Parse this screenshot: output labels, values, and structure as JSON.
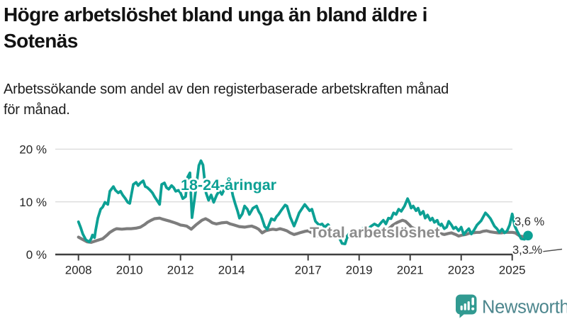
{
  "header": {
    "title_lines": [
      "Högre arbetslöshet bland unga än bland äldre i",
      "Sotenäs"
    ],
    "subtitle_lines": [
      "Arbetssökande som andel av den registerbaserade arbetskraften månad",
      "för månad."
    ]
  },
  "footer": {
    "brand": "Newsworthy",
    "brand_color": "#4c868d",
    "icon_color": "#319a91"
  },
  "chart_data": {
    "type": "line",
    "title": "Högre arbetslöshet bland unga än bland äldre i Sotenäs",
    "subtitle": "Arbetssökande som andel av den registerbaserade arbetskraften månad för månad.",
    "unit": "%",
    "grid": "horizontal",
    "legend_position": "inline-labels",
    "xlim": [
      2008,
      2025.8
    ],
    "ylim": [
      0,
      20
    ],
    "x_ticks": [
      2008,
      2010,
      2012,
      2014,
      2017,
      2019,
      2021,
      2023,
      2025
    ],
    "x_tick_labels": [
      "2008",
      "2010",
      "2012",
      "2014",
      "2017",
      "2019",
      "2021",
      "2023",
      "2025"
    ],
    "y_ticks": [
      0,
      10,
      20
    ],
    "y_tick_labels": [
      "0 %",
      "10 %",
      "20 %"
    ],
    "colors": {
      "youth": "#0ca094",
      "total": "#7d7d7d",
      "grid": "#dcdcdc",
      "axis": "#3f3f3f"
    },
    "series": [
      {
        "name": "Total arbetslöshet",
        "color": "#7d7d7d",
        "stroke_width": 4.2,
        "end_label": "3,3 %",
        "end_value": 3.3,
        "points": [
          [
            2008.0,
            3.3
          ],
          [
            2008.15,
            2.9
          ],
          [
            2008.34,
            2.4
          ],
          [
            2008.5,
            2.3
          ],
          [
            2008.76,
            2.7
          ],
          [
            2008.95,
            3.0
          ],
          [
            2009.1,
            3.6
          ],
          [
            2009.23,
            4.2
          ],
          [
            2009.4,
            4.7
          ],
          [
            2009.5,
            4.9
          ],
          [
            2009.7,
            4.8
          ],
          [
            2009.9,
            4.9
          ],
          [
            2010.06,
            4.9
          ],
          [
            2010.25,
            5.0
          ],
          [
            2010.43,
            5.2
          ],
          [
            2010.6,
            5.7
          ],
          [
            2010.7,
            6.1
          ],
          [
            2010.85,
            6.5
          ],
          [
            2010.98,
            6.8
          ],
          [
            2011.18,
            6.9
          ],
          [
            2011.3,
            6.7
          ],
          [
            2011.45,
            6.5
          ],
          [
            2011.6,
            6.3
          ],
          [
            2011.73,
            6.1
          ],
          [
            2011.9,
            5.8
          ],
          [
            2012.0,
            5.6
          ],
          [
            2012.12,
            5.5
          ],
          [
            2012.24,
            5.4
          ],
          [
            2012.42,
            4.8
          ],
          [
            2012.6,
            5.6
          ],
          [
            2012.84,
            6.5
          ],
          [
            2012.98,
            6.8
          ],
          [
            2013.1,
            6.5
          ],
          [
            2013.25,
            6.0
          ],
          [
            2013.4,
            5.8
          ],
          [
            2013.6,
            6.0
          ],
          [
            2013.81,
            6.1
          ],
          [
            2013.95,
            5.8
          ],
          [
            2014.1,
            5.6
          ],
          [
            2014.3,
            5.3
          ],
          [
            2014.51,
            5.2
          ],
          [
            2014.65,
            5.3
          ],
          [
            2014.79,
            5.4
          ],
          [
            2014.95,
            5.1
          ],
          [
            2015.06,
            4.8
          ],
          [
            2015.2,
            4.1
          ],
          [
            2015.34,
            4.5
          ],
          [
            2015.5,
            4.7
          ],
          [
            2015.62,
            4.8
          ],
          [
            2015.75,
            4.7
          ],
          [
            2015.9,
            4.9
          ],
          [
            2016.05,
            4.7
          ],
          [
            2016.17,
            4.5
          ],
          [
            2016.3,
            4.1
          ],
          [
            2016.45,
            3.8
          ],
          [
            2016.6,
            4.0
          ],
          [
            2016.73,
            4.2
          ],
          [
            2016.88,
            4.4
          ],
          [
            2017.0,
            4.5
          ],
          [
            2017.15,
            4.1
          ],
          [
            2017.29,
            3.4
          ],
          [
            2017.45,
            3.6
          ],
          [
            2017.6,
            3.7
          ],
          [
            2017.75,
            3.5
          ],
          [
            2017.9,
            3.3
          ],
          [
            2018.1,
            3.4
          ],
          [
            2018.3,
            3.2
          ],
          [
            2018.5,
            3.4
          ],
          [
            2018.7,
            3.3
          ],
          [
            2018.9,
            3.4
          ],
          [
            2019.1,
            3.5
          ],
          [
            2019.3,
            3.6
          ],
          [
            2019.5,
            3.7
          ],
          [
            2019.7,
            3.8
          ],
          [
            2019.9,
            4.0
          ],
          [
            2020.1,
            4.6
          ],
          [
            2020.3,
            5.5
          ],
          [
            2020.5,
            6.1
          ],
          [
            2020.7,
            6.5
          ],
          [
            2020.82,
            6.3
          ],
          [
            2020.95,
            5.7
          ],
          [
            2021.05,
            5.2
          ],
          [
            2021.17,
            4.9
          ],
          [
            2021.3,
            4.4
          ],
          [
            2021.45,
            4.1
          ],
          [
            2021.6,
            4.4
          ],
          [
            2021.72,
            4.5
          ],
          [
            2021.85,
            4.3
          ],
          [
            2022.0,
            4.2
          ],
          [
            2022.17,
            4.0
          ],
          [
            2022.34,
            3.8
          ],
          [
            2022.5,
            4.0
          ],
          [
            2022.62,
            4.1
          ],
          [
            2022.78,
            3.8
          ],
          [
            2022.9,
            3.5
          ],
          [
            2023.05,
            3.7
          ],
          [
            2023.18,
            3.8
          ],
          [
            2023.3,
            4.0
          ],
          [
            2023.45,
            4.1
          ],
          [
            2023.6,
            4.2
          ],
          [
            2023.73,
            4.2
          ],
          [
            2023.85,
            4.4
          ],
          [
            2024.0,
            4.5
          ],
          [
            2024.15,
            4.3
          ],
          [
            2024.29,
            4.2
          ],
          [
            2024.45,
            4.1
          ],
          [
            2024.57,
            4.1
          ],
          [
            2024.7,
            4.2
          ],
          [
            2024.84,
            4.2
          ],
          [
            2025.0,
            4.2
          ],
          [
            2025.12,
            4.1
          ],
          [
            2025.3,
            3.5
          ],
          [
            2025.43,
            3.4
          ],
          [
            2025.62,
            3.3
          ]
        ]
      },
      {
        "name": "18-24-åringar",
        "color": "#0ca094",
        "stroke_width": 3.8,
        "end_label": "3,6 %",
        "end_value": 3.6,
        "end_dot": true,
        "points": [
          [
            2008.0,
            6.2
          ],
          [
            2008.08,
            5.2
          ],
          [
            2008.17,
            3.9
          ],
          [
            2008.29,
            2.8
          ],
          [
            2008.42,
            2.4
          ],
          [
            2008.5,
            3.0
          ],
          [
            2008.55,
            3.7
          ],
          [
            2008.63,
            3.2
          ],
          [
            2008.67,
            4.5
          ],
          [
            2008.76,
            6.9
          ],
          [
            2008.87,
            8.6
          ],
          [
            2008.95,
            9.0
          ],
          [
            2009.04,
            9.9
          ],
          [
            2009.15,
            9.5
          ],
          [
            2009.23,
            12.0
          ],
          [
            2009.37,
            12.9
          ],
          [
            2009.45,
            12.2
          ],
          [
            2009.56,
            11.7
          ],
          [
            2009.65,
            12.0
          ],
          [
            2009.73,
            11.3
          ],
          [
            2009.84,
            10.6
          ],
          [
            2009.93,
            9.9
          ],
          [
            2010.01,
            9.7
          ],
          [
            2010.15,
            13.3
          ],
          [
            2010.26,
            13.7
          ],
          [
            2010.34,
            13.1
          ],
          [
            2010.43,
            13.6
          ],
          [
            2010.54,
            14.0
          ],
          [
            2010.62,
            12.9
          ],
          [
            2010.7,
            12.7
          ],
          [
            2010.81,
            12.2
          ],
          [
            2010.9,
            11.7
          ],
          [
            2010.98,
            11.0
          ],
          [
            2011.09,
            10.2
          ],
          [
            2011.18,
            9.5
          ],
          [
            2011.26,
            13.3
          ],
          [
            2011.37,
            13.6
          ],
          [
            2011.45,
            12.7
          ],
          [
            2011.54,
            12.4
          ],
          [
            2011.65,
            13.1
          ],
          [
            2011.73,
            12.7
          ],
          [
            2011.81,
            12.0
          ],
          [
            2011.92,
            12.2
          ],
          [
            2012.0,
            11.7
          ],
          [
            2012.09,
            10.6
          ],
          [
            2012.2,
            11.0
          ],
          [
            2012.28,
            14.7
          ],
          [
            2012.37,
            15.5
          ],
          [
            2012.45,
            7.0
          ],
          [
            2012.6,
            12.3
          ],
          [
            2012.72,
            16.9
          ],
          [
            2012.8,
            17.8
          ],
          [
            2012.88,
            17.0
          ],
          [
            2013.0,
            11.7
          ],
          [
            2013.1,
            10.3
          ],
          [
            2013.2,
            11.3
          ],
          [
            2013.3,
            9.9
          ],
          [
            2013.42,
            11.3
          ],
          [
            2013.52,
            12.1
          ],
          [
            2013.62,
            11.4
          ],
          [
            2013.72,
            12.4
          ],
          [
            2013.82,
            13.2
          ],
          [
            2013.92,
            14.4
          ],
          [
            2014.05,
            11.2
          ],
          [
            2014.14,
            9.7
          ],
          [
            2014.24,
            8.2
          ],
          [
            2014.31,
            6.9
          ],
          [
            2014.42,
            7.7
          ],
          [
            2014.51,
            9.2
          ],
          [
            2014.62,
            8.6
          ],
          [
            2014.7,
            7.6
          ],
          [
            2014.84,
            8.8
          ],
          [
            2014.98,
            9.2
          ],
          [
            2015.06,
            8.2
          ],
          [
            2015.15,
            7.5
          ],
          [
            2015.3,
            5.3
          ],
          [
            2015.4,
            4.8
          ],
          [
            2015.56,
            6.8
          ],
          [
            2015.68,
            6.5
          ],
          [
            2015.76,
            7.2
          ],
          [
            2015.84,
            7.6
          ],
          [
            2015.95,
            8.4
          ],
          [
            2016.1,
            9.4
          ],
          [
            2016.17,
            9.2
          ],
          [
            2016.3,
            7.1
          ],
          [
            2016.45,
            5.4
          ],
          [
            2016.55,
            6.6
          ],
          [
            2016.65,
            7.9
          ],
          [
            2016.87,
            9.5
          ],
          [
            2016.95,
            9.0
          ],
          [
            2017.06,
            8.3
          ],
          [
            2017.15,
            8.6
          ],
          [
            2017.29,
            6.3
          ],
          [
            2017.43,
            5.6
          ],
          [
            2017.55,
            5.8
          ],
          [
            2017.65,
            5.2
          ],
          [
            2017.78,
            5.7
          ],
          [
            2017.9,
            4.9
          ],
          [
            2018.05,
            4.2
          ],
          [
            2018.2,
            3.4
          ],
          [
            2018.33,
            2.1
          ],
          [
            2018.45,
            2.0
          ],
          [
            2018.55,
            3.6
          ],
          [
            2018.7,
            4.5
          ],
          [
            2018.85,
            3.9
          ],
          [
            2019.0,
            4.4
          ],
          [
            2019.15,
            5.0
          ],
          [
            2019.3,
            4.6
          ],
          [
            2019.45,
            5.3
          ],
          [
            2019.6,
            5.8
          ],
          [
            2019.75,
            5.4
          ],
          [
            2019.87,
            6.1
          ],
          [
            2019.95,
            6.5
          ],
          [
            2020.05,
            5.8
          ],
          [
            2020.15,
            6.9
          ],
          [
            2020.25,
            6.8
          ],
          [
            2020.35,
            7.9
          ],
          [
            2020.45,
            7.6
          ],
          [
            2020.55,
            8.6
          ],
          [
            2020.65,
            8.2
          ],
          [
            2020.78,
            9.2
          ],
          [
            2020.9,
            10.6
          ],
          [
            2020.98,
            9.7
          ],
          [
            2021.04,
            8.8
          ],
          [
            2021.12,
            9.2
          ],
          [
            2021.23,
            8.3
          ],
          [
            2021.31,
            8.8
          ],
          [
            2021.4,
            7.6
          ],
          [
            2021.51,
            8.2
          ],
          [
            2021.59,
            6.9
          ],
          [
            2021.68,
            7.5
          ],
          [
            2021.79,
            6.5
          ],
          [
            2021.87,
            6.9
          ],
          [
            2021.95,
            6.1
          ],
          [
            2022.06,
            6.5
          ],
          [
            2022.15,
            5.4
          ],
          [
            2022.23,
            5.8
          ],
          [
            2022.34,
            4.9
          ],
          [
            2022.43,
            5.2
          ],
          [
            2022.51,
            6.3
          ],
          [
            2022.62,
            5.6
          ],
          [
            2022.7,
            4.9
          ],
          [
            2022.79,
            5.2
          ],
          [
            2022.9,
            4.5
          ],
          [
            2023.0,
            5.2
          ],
          [
            2023.1,
            3.8
          ],
          [
            2023.2,
            4.4
          ],
          [
            2023.3,
            4.9
          ],
          [
            2023.4,
            3.9
          ],
          [
            2023.5,
            4.6
          ],
          [
            2023.62,
            5.6
          ],
          [
            2023.78,
            6.4
          ],
          [
            2023.95,
            7.9
          ],
          [
            2024.05,
            7.4
          ],
          [
            2024.15,
            6.8
          ],
          [
            2024.3,
            5.4
          ],
          [
            2024.4,
            4.9
          ],
          [
            2024.5,
            4.2
          ],
          [
            2024.6,
            4.8
          ],
          [
            2024.7,
            4.1
          ],
          [
            2024.8,
            4.5
          ],
          [
            2024.9,
            5.6
          ],
          [
            2025.0,
            7.7
          ],
          [
            2025.1,
            5.4
          ],
          [
            2025.22,
            4.2
          ],
          [
            2025.35,
            3.0
          ],
          [
            2025.48,
            2.9
          ],
          [
            2025.62,
            3.6
          ]
        ]
      }
    ]
  }
}
